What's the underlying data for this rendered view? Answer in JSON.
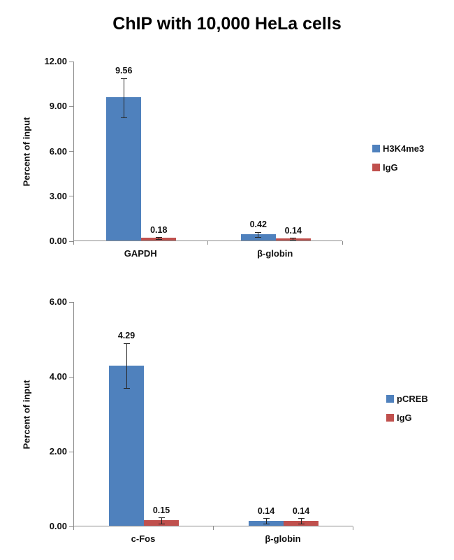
{
  "title": "ChIP with 10,000 HeLa cells",
  "chart_data": [
    {
      "type": "bar",
      "title": "ChIP with 10,000 HeLa cells",
      "ylabel": "Percent of input",
      "ylim": [
        0,
        12
      ],
      "yticks": [
        0,
        3,
        6,
        9,
        12
      ],
      "ytick_labels": [
        "0.00",
        "3.00",
        "6.00",
        "9.00",
        "12.00"
      ],
      "categories": [
        "GAPDH",
        "β-globin"
      ],
      "grid": false,
      "legend_position": "right",
      "series": [
        {
          "name": "H3K4me3",
          "color": "#4f81bd",
          "values": [
            9.56,
            0.42
          ],
          "errors": [
            1.3,
            0.18
          ],
          "data_labels": [
            "9.56",
            "0.42"
          ]
        },
        {
          "name": "IgG",
          "color": "#c0504d",
          "values": [
            0.18,
            0.14
          ],
          "errors": [
            0.06,
            0.06
          ],
          "data_labels": [
            "0.18",
            "0.14"
          ]
        }
      ]
    },
    {
      "type": "bar",
      "title": "",
      "ylabel": "Percent of input",
      "ylim": [
        0,
        6
      ],
      "yticks": [
        0,
        2,
        4,
        6
      ],
      "ytick_labels": [
        "0.00",
        "2.00",
        "4.00",
        "6.00"
      ],
      "categories": [
        "c-Fos",
        "β-globin"
      ],
      "grid": false,
      "legend_position": "right",
      "series": [
        {
          "name": "pCREB",
          "color": "#4f81bd",
          "values": [
            4.29,
            0.14
          ],
          "errors": [
            0.6,
            0.07
          ],
          "data_labels": [
            "4.29",
            "0.14"
          ]
        },
        {
          "name": "IgG",
          "color": "#c0504d",
          "values": [
            0.15,
            0.14
          ],
          "errors": [
            0.08,
            0.07
          ],
          "data_labels": [
            "0.15",
            "0.14"
          ]
        }
      ]
    }
  ]
}
